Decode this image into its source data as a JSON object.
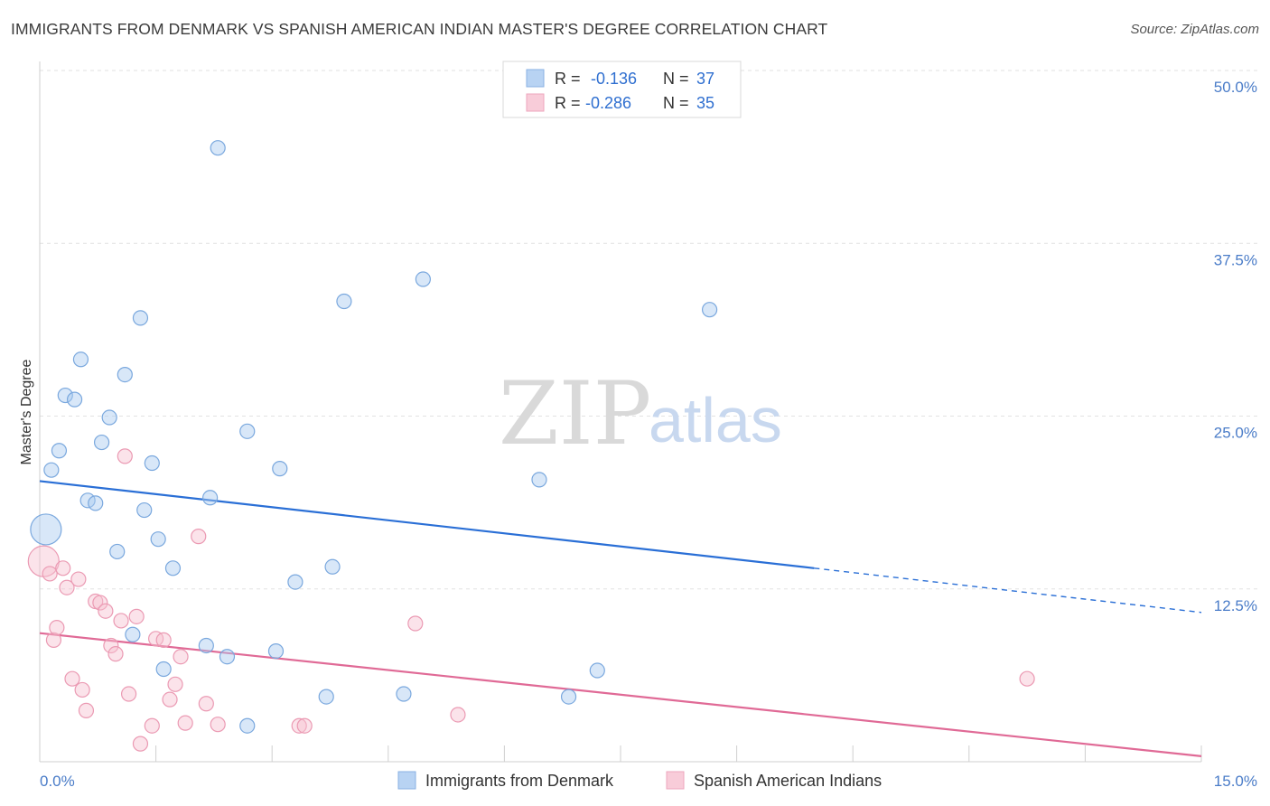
{
  "chart_data": {
    "type": "scatter",
    "title": "IMMIGRANTS FROM DENMARK VS SPANISH AMERICAN INDIAN MASTER'S DEGREE CORRELATION CHART",
    "source": "Source: ZipAtlas.com",
    "xlabel": "",
    "ylabel": "Master's Degree",
    "xlim": [
      0,
      15
    ],
    "ylim": [
      0,
      50.0
    ],
    "x_tick_labels": [
      "0.0%",
      "15.0%"
    ],
    "y_ticks": [
      12.5,
      25.0,
      37.5,
      50.0
    ],
    "y_tick_labels": [
      "12.5%",
      "25.0%",
      "37.5%",
      "50.0%"
    ],
    "watermark": {
      "zip": "ZIP",
      "atlas": "atlas"
    },
    "legend": [
      {
        "r_label": "R =",
        "r_value": "-0.136",
        "n_label": "N =",
        "n_value": "37"
      },
      {
        "r_label": "R =",
        "r_value": "-0.286",
        "n_label": "N =",
        "n_value": "35"
      }
    ],
    "series": [
      {
        "name": "Immigrants from Denmark",
        "color": "#a9c9ef",
        "stroke": "#7aa8de",
        "line_color": "#2a6fd6",
        "trend": {
          "x0": 0,
          "y0": 20.3,
          "x1": 10.0,
          "y1": 14.0,
          "dash_x1": 15.0,
          "dash_y1": 10.8
        },
        "points": [
          {
            "x": 0.08,
            "y": 16.8,
            "big": true
          },
          {
            "x": 0.15,
            "y": 21.1
          },
          {
            "x": 0.25,
            "y": 22.5
          },
          {
            "x": 0.33,
            "y": 26.5
          },
          {
            "x": 0.45,
            "y": 26.2
          },
          {
            "x": 0.53,
            "y": 29.1
          },
          {
            "x": 0.62,
            "y": 18.9
          },
          {
            "x": 0.72,
            "y": 18.7
          },
          {
            "x": 0.8,
            "y": 23.1
          },
          {
            "x": 0.9,
            "y": 24.9
          },
          {
            "x": 1.0,
            "y": 15.2
          },
          {
            "x": 1.1,
            "y": 28.0
          },
          {
            "x": 1.2,
            "y": 9.2
          },
          {
            "x": 1.3,
            "y": 32.1
          },
          {
            "x": 1.35,
            "y": 18.2
          },
          {
            "x": 1.45,
            "y": 21.6
          },
          {
            "x": 1.53,
            "y": 16.1
          },
          {
            "x": 1.6,
            "y": 6.7
          },
          {
            "x": 1.72,
            "y": 14.0
          },
          {
            "x": 2.15,
            "y": 8.4
          },
          {
            "x": 2.2,
            "y": 19.1
          },
          {
            "x": 2.3,
            "y": 44.4
          },
          {
            "x": 2.42,
            "y": 7.6
          },
          {
            "x": 2.68,
            "y": 2.6
          },
          {
            "x": 2.68,
            "y": 23.9
          },
          {
            "x": 3.05,
            "y": 8.0
          },
          {
            "x": 3.1,
            "y": 21.2
          },
          {
            "x": 3.3,
            "y": 13.0
          },
          {
            "x": 3.7,
            "y": 4.7
          },
          {
            "x": 3.78,
            "y": 14.1
          },
          {
            "x": 3.93,
            "y": 33.3
          },
          {
            "x": 4.7,
            "y": 4.9
          },
          {
            "x": 4.95,
            "y": 34.9
          },
          {
            "x": 6.45,
            "y": 20.4
          },
          {
            "x": 6.83,
            "y": 4.7
          },
          {
            "x": 7.2,
            "y": 6.6
          },
          {
            "x": 8.65,
            "y": 32.7
          }
        ]
      },
      {
        "name": "Spanish American Indians",
        "color": "#f6c1d0",
        "stroke": "#eb9ab3",
        "line_color": "#e06a96",
        "trend": {
          "x0": 0,
          "y0": 9.3,
          "x1": 15.0,
          "y1": 0.4
        },
        "points": [
          {
            "x": 0.05,
            "y": 14.5,
            "big": true
          },
          {
            "x": 0.13,
            "y": 13.6
          },
          {
            "x": 0.18,
            "y": 8.8
          },
          {
            "x": 0.22,
            "y": 9.7
          },
          {
            "x": 0.3,
            "y": 14.0
          },
          {
            "x": 0.35,
            "y": 12.6
          },
          {
            "x": 0.42,
            "y": 6.0
          },
          {
            "x": 0.5,
            "y": 13.2
          },
          {
            "x": 0.55,
            "y": 5.2
          },
          {
            "x": 0.6,
            "y": 3.7
          },
          {
            "x": 0.72,
            "y": 11.6
          },
          {
            "x": 0.78,
            "y": 11.5
          },
          {
            "x": 0.85,
            "y": 10.9
          },
          {
            "x": 0.92,
            "y": 8.4
          },
          {
            "x": 0.98,
            "y": 7.8
          },
          {
            "x": 1.05,
            "y": 10.2
          },
          {
            "x": 1.1,
            "y": 22.1
          },
          {
            "x": 1.15,
            "y": 4.9
          },
          {
            "x": 1.25,
            "y": 10.5
          },
          {
            "x": 1.3,
            "y": 1.3
          },
          {
            "x": 1.45,
            "y": 2.6
          },
          {
            "x": 1.5,
            "y": 8.9
          },
          {
            "x": 1.6,
            "y": 8.8
          },
          {
            "x": 1.68,
            "y": 4.5
          },
          {
            "x": 1.75,
            "y": 5.6
          },
          {
            "x": 1.82,
            "y": 7.6
          },
          {
            "x": 1.88,
            "y": 2.8
          },
          {
            "x": 2.05,
            "y": 16.3
          },
          {
            "x": 2.15,
            "y": 4.2
          },
          {
            "x": 2.3,
            "y": 2.7
          },
          {
            "x": 3.35,
            "y": 2.6
          },
          {
            "x": 3.42,
            "y": 2.6
          },
          {
            "x": 4.85,
            "y": 10.0
          },
          {
            "x": 5.4,
            "y": 3.4
          },
          {
            "x": 12.75,
            "y": 6.0
          }
        ]
      }
    ]
  }
}
